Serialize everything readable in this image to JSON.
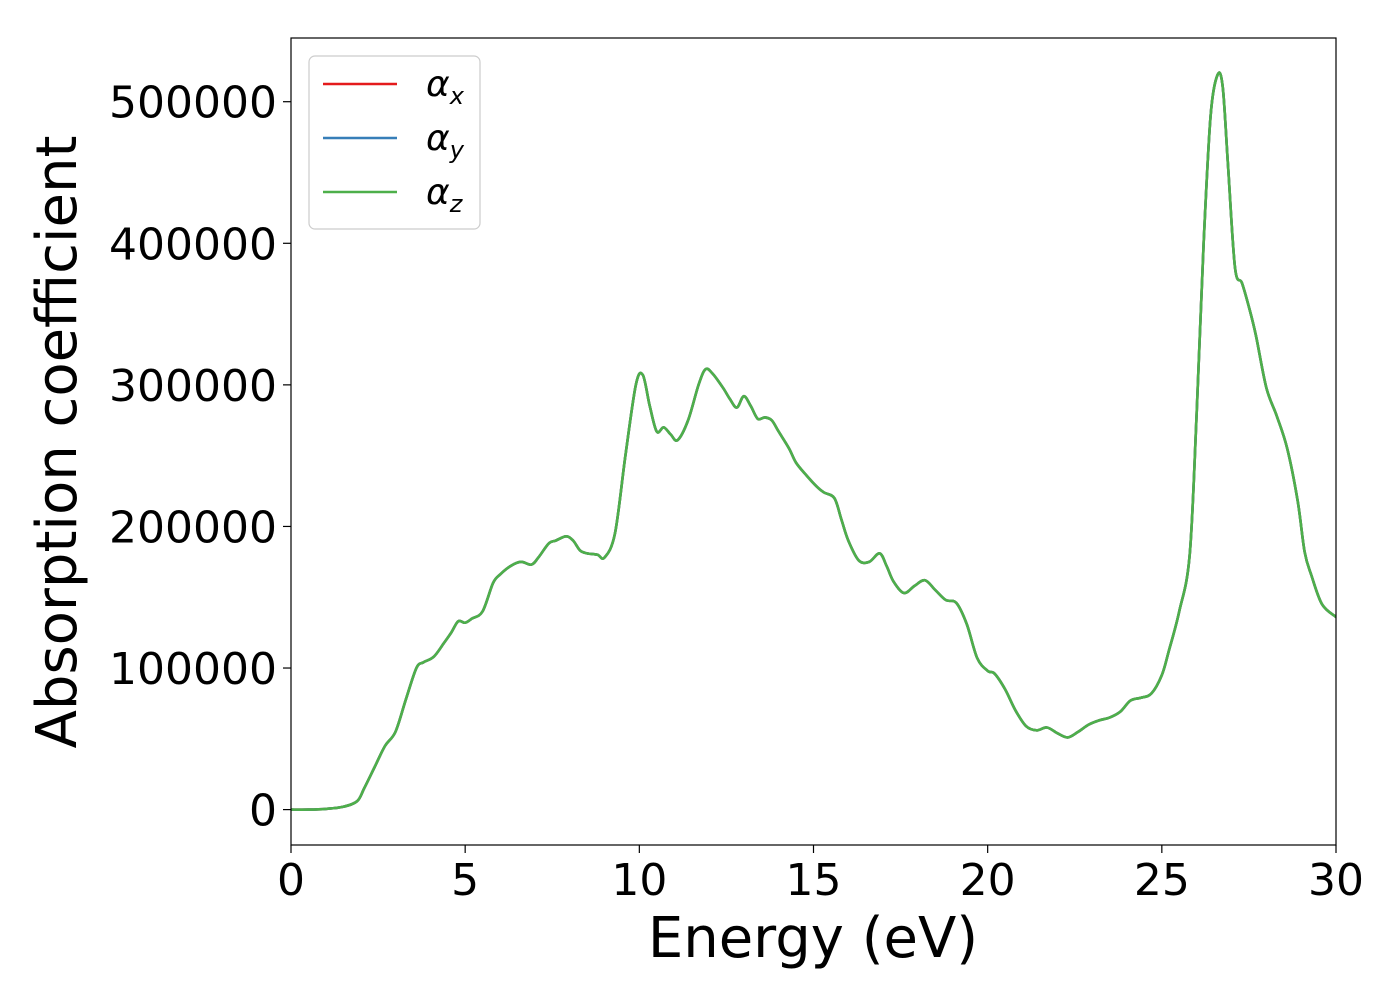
{
  "chart_data": {
    "type": "line",
    "title": "",
    "xlabel": "Energy (eV)",
    "ylabel": "Absorption coefficient",
    "xlim": [
      0,
      30
    ],
    "ylim": [
      -25000,
      545000
    ],
    "xticks": [
      0,
      5,
      10,
      15,
      20,
      25,
      30
    ],
    "xtick_labels": [
      "0",
      "5",
      "10",
      "15",
      "20",
      "25",
      "30"
    ],
    "yticks": [
      0,
      100000,
      200000,
      300000,
      400000,
      500000
    ],
    "ytick_labels": [
      "0",
      "100000",
      "200000",
      "300000",
      "400000",
      "500000"
    ],
    "grid": false,
    "legend_position": "top-left",
    "series": [
      {
        "name": "x",
        "legend_symbol": "α",
        "color": "#e41a1c",
        "shared_values_with": "all"
      },
      {
        "name": "y",
        "legend_symbol": "α",
        "color": "#377eb8",
        "shared_values_with": "all"
      },
      {
        "name": "z",
        "legend_symbol": "α",
        "color": "#4daf4a",
        "shared_values_with": "all"
      }
    ],
    "x": [
      0,
      0.5,
      1.0,
      1.5,
      1.9,
      2.1,
      2.4,
      2.7,
      3.0,
      3.3,
      3.6,
      3.8,
      4.1,
      4.4,
      4.6,
      4.8,
      5.0,
      5.2,
      5.5,
      5.8,
      6.0,
      6.3,
      6.6,
      6.9,
      7.1,
      7.4,
      7.6,
      7.9,
      8.1,
      8.3,
      8.5,
      8.8,
      9.0,
      9.3,
      9.6,
      9.9,
      10.1,
      10.3,
      10.5,
      10.7,
      10.9,
      11.1,
      11.4,
      11.7,
      11.9,
      12.1,
      12.4,
      12.6,
      12.8,
      13.0,
      13.2,
      13.4,
      13.6,
      13.8,
      14.0,
      14.3,
      14.5,
      14.8,
      15.1,
      15.3,
      15.6,
      15.8,
      16.0,
      16.3,
      16.6,
      16.9,
      17.1,
      17.3,
      17.6,
      17.9,
      18.2,
      18.5,
      18.8,
      19.1,
      19.4,
      19.7,
      20.0,
      20.2,
      20.5,
      20.8,
      21.1,
      21.4,
      21.7,
      22.0,
      22.3,
      22.6,
      22.9,
      23.2,
      23.5,
      23.8,
      24.1,
      24.4,
      24.7,
      25.0,
      25.2,
      25.5,
      25.8,
      26.0,
      26.2,
      26.4,
      26.6,
      26.75,
      26.9,
      27.1,
      27.3,
      27.5,
      27.7,
      28.0,
      28.3,
      28.6,
      28.9,
      29.1,
      29.3,
      29.6,
      30.0
    ],
    "values": [
      0,
      0,
      500,
      2000,
      6000,
      15000,
      30000,
      45000,
      55000,
      78000,
      100000,
      104000,
      108000,
      118000,
      125000,
      133000,
      132000,
      135000,
      140000,
      160000,
      166000,
      172000,
      175000,
      173000,
      178000,
      188000,
      190000,
      193000,
      190000,
      183000,
      181000,
      180000,
      178000,
      195000,
      250000,
      300000,
      307000,
      285000,
      267000,
      270000,
      265000,
      261000,
      275000,
      300000,
      311000,
      308000,
      298000,
      290000,
      284000,
      292000,
      285000,
      276000,
      277000,
      275000,
      267000,
      255000,
      245000,
      236000,
      228000,
      224000,
      220000,
      205000,
      190000,
      176000,
      175000,
      181000,
      172000,
      161000,
      153000,
      158000,
      162000,
      155000,
      148000,
      146000,
      131000,
      107000,
      98000,
      96000,
      85000,
      70000,
      59000,
      56000,
      58000,
      54000,
      51000,
      55000,
      60000,
      63000,
      65000,
      69000,
      77000,
      79000,
      82000,
      95000,
      112000,
      140000,
      180000,
      280000,
      400000,
      490000,
      519000,
      510000,
      455000,
      383000,
      372000,
      355000,
      335000,
      298000,
      278000,
      255000,
      218000,
      182000,
      165000,
      145000,
      136000
    ]
  }
}
